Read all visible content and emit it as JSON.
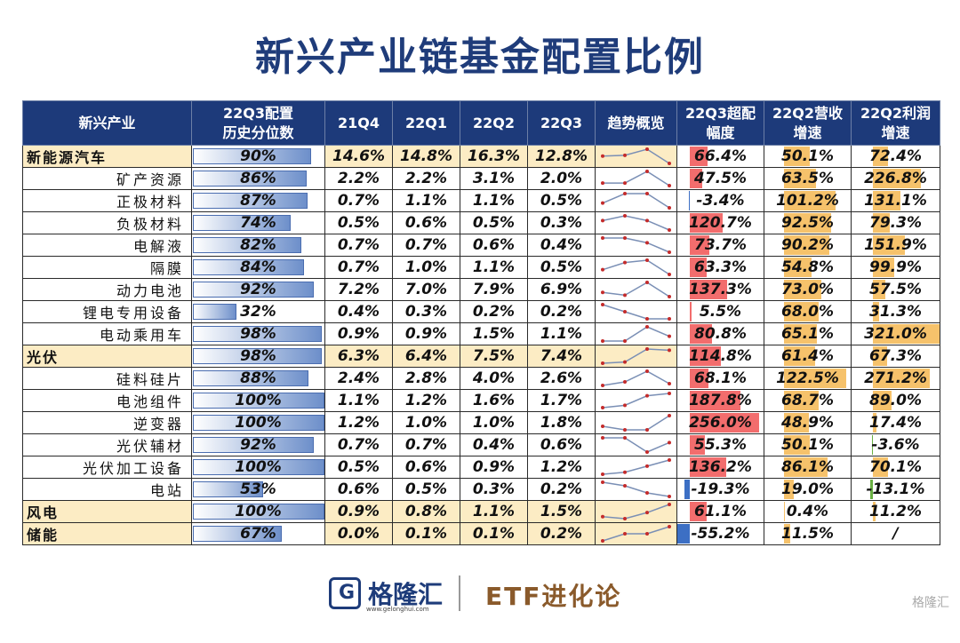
{
  "title": "新兴产业链基金配置比例",
  "headers": {
    "industry": "新兴产业",
    "pct_line1": "22Q3配置",
    "pct_line2": "历史分位数",
    "q1": "21Q4",
    "q2": "22Q1",
    "q3": "22Q2",
    "q4": "22Q3",
    "trend": "趋势概览",
    "over_line1": "22Q3超配",
    "over_line2": "幅度",
    "rev_line1": "22Q2营收",
    "rev_line2": "增速",
    "prof_line1": "22Q2利润",
    "prof_line2": "增速"
  },
  "rows": [
    {
      "name": "新能源汽车",
      "cat": true,
      "pct": "90%",
      "pct_v": 90,
      "q": [
        "14.6%",
        "14.8%",
        "16.3%",
        "12.8%"
      ],
      "qv": [
        14.6,
        14.8,
        16.3,
        12.8
      ],
      "over": "66.4%",
      "over_v": 66.4,
      "rev": "50.1%",
      "rev_v": 50.1,
      "prof": "72.4%",
      "prof_v": 72.4
    },
    {
      "name": "矿产资源",
      "cat": false,
      "pct": "86%",
      "pct_v": 86,
      "q": [
        "2.2%",
        "2.2%",
        "3.1%",
        "2.0%"
      ],
      "qv": [
        2.2,
        2.2,
        3.1,
        2.0
      ],
      "over": "47.5%",
      "over_v": 47.5,
      "rev": "63.5%",
      "rev_v": 63.5,
      "prof": "226.8%",
      "prof_v": 226.8
    },
    {
      "name": "正极材料",
      "cat": false,
      "pct": "87%",
      "pct_v": 87,
      "q": [
        "0.7%",
        "1.1%",
        "1.1%",
        "0.5%"
      ],
      "qv": [
        0.7,
        1.1,
        1.1,
        0.5
      ],
      "over": "-3.4%",
      "over_v": -3.4,
      "rev": "101.2%",
      "rev_v": 101.2,
      "prof": "131.1%",
      "prof_v": 131.1
    },
    {
      "name": "负极材料",
      "cat": false,
      "pct": "74%",
      "pct_v": 74,
      "q": [
        "0.5%",
        "0.6%",
        "0.5%",
        "0.3%"
      ],
      "qv": [
        0.5,
        0.6,
        0.5,
        0.3
      ],
      "over": "120.7%",
      "over_v": 120.7,
      "rev": "92.5%",
      "rev_v": 92.5,
      "prof": "79.3%",
      "prof_v": 79.3
    },
    {
      "name": "电解液",
      "cat": false,
      "pct": "82%",
      "pct_v": 82,
      "q": [
        "0.7%",
        "0.7%",
        "0.6%",
        "0.4%"
      ],
      "qv": [
        0.7,
        0.7,
        0.6,
        0.4
      ],
      "over": "73.7%",
      "over_v": 73.7,
      "rev": "90.2%",
      "rev_v": 90.2,
      "prof": "151.9%",
      "prof_v": 151.9
    },
    {
      "name": "隔膜",
      "cat": false,
      "pct": "84%",
      "pct_v": 84,
      "q": [
        "0.7%",
        "1.0%",
        "1.1%",
        "0.5%"
      ],
      "qv": [
        0.7,
        1.0,
        1.1,
        0.5
      ],
      "over": "63.3%",
      "over_v": 63.3,
      "rev": "54.8%",
      "rev_v": 54.8,
      "prof": "99.9%",
      "prof_v": 99.9
    },
    {
      "name": "动力电池",
      "cat": false,
      "pct": "92%",
      "pct_v": 92,
      "q": [
        "7.2%",
        "7.0%",
        "7.9%",
        "6.9%"
      ],
      "qv": [
        7.2,
        7.0,
        7.9,
        6.9
      ],
      "over": "137.3%",
      "over_v": 137.3,
      "rev": "73.0%",
      "rev_v": 73.0,
      "prof": "57.5%",
      "prof_v": 57.5
    },
    {
      "name": "锂电专用设备",
      "cat": false,
      "pct": "32%",
      "pct_v": 32,
      "q": [
        "0.4%",
        "0.3%",
        "0.2%",
        "0.2%"
      ],
      "qv": [
        0.4,
        0.3,
        0.2,
        0.2
      ],
      "over": "5.5%",
      "over_v": 5.5,
      "rev": "68.0%",
      "rev_v": 68.0,
      "prof": "31.3%",
      "prof_v": 31.3
    },
    {
      "name": "电动乘用车",
      "cat": false,
      "pct": "98%",
      "pct_v": 98,
      "q": [
        "0.9%",
        "0.9%",
        "1.5%",
        "1.1%"
      ],
      "qv": [
        0.9,
        0.9,
        1.5,
        1.1
      ],
      "over": "80.8%",
      "over_v": 80.8,
      "rev": "65.1%",
      "rev_v": 65.1,
      "prof": "321.0%",
      "prof_v": 321.0
    },
    {
      "name": "光伏",
      "cat": true,
      "pct": "98%",
      "pct_v": 98,
      "q": [
        "6.3%",
        "6.4%",
        "7.5%",
        "7.4%"
      ],
      "qv": [
        6.3,
        6.4,
        7.5,
        7.4
      ],
      "over": "114.8%",
      "over_v": 114.8,
      "rev": "61.4%",
      "rev_v": 61.4,
      "prof": "67.3%",
      "prof_v": 67.3
    },
    {
      "name": "硅料硅片",
      "cat": false,
      "pct": "88%",
      "pct_v": 88,
      "q": [
        "2.4%",
        "2.8%",
        "4.0%",
        "2.6%"
      ],
      "qv": [
        2.4,
        2.8,
        4.0,
        2.6
      ],
      "over": "68.1%",
      "over_v": 68.1,
      "rev": "122.5%",
      "rev_v": 122.5,
      "prof": "271.2%",
      "prof_v": 271.2
    },
    {
      "name": "电池组件",
      "cat": false,
      "pct": "100%",
      "pct_v": 100,
      "q": [
        "1.1%",
        "1.2%",
        "1.6%",
        "1.7%"
      ],
      "qv": [
        1.1,
        1.2,
        1.6,
        1.7
      ],
      "over": "187.8%",
      "over_v": 187.8,
      "rev": "68.7%",
      "rev_v": 68.7,
      "prof": "89.0%",
      "prof_v": 89.0
    },
    {
      "name": "逆变器",
      "cat": false,
      "pct": "100%",
      "pct_v": 100,
      "q": [
        "1.2%",
        "1.0%",
        "1.0%",
        "1.8%"
      ],
      "qv": [
        1.2,
        1.0,
        1.0,
        1.8
      ],
      "over": "256.0%",
      "over_v": 256.0,
      "rev": "48.9%",
      "rev_v": 48.9,
      "prof": "17.4%",
      "prof_v": 17.4
    },
    {
      "name": "光伏辅材",
      "cat": false,
      "pct": "92%",
      "pct_v": 92,
      "q": [
        "0.7%",
        "0.7%",
        "0.4%",
        "0.6%"
      ],
      "qv": [
        0.7,
        0.7,
        0.4,
        0.6
      ],
      "over": "55.3%",
      "over_v": 55.3,
      "rev": "50.1%",
      "rev_v": 50.1,
      "prof": "-3.6%",
      "prof_v": -3.6
    },
    {
      "name": "光伏加工设备",
      "cat": false,
      "pct": "100%",
      "pct_v": 100,
      "q": [
        "0.5%",
        "0.6%",
        "0.9%",
        "1.2%"
      ],
      "qv": [
        0.5,
        0.6,
        0.9,
        1.2
      ],
      "over": "136.2%",
      "over_v": 136.2,
      "rev": "86.1%",
      "rev_v": 86.1,
      "prof": "70.1%",
      "prof_v": 70.1
    },
    {
      "name": "电站",
      "cat": false,
      "pct": "53%",
      "pct_v": 53,
      "q": [
        "0.6%",
        "0.5%",
        "0.3%",
        "0.2%"
      ],
      "qv": [
        0.6,
        0.5,
        0.3,
        0.2
      ],
      "over": "-19.3%",
      "over_v": -19.3,
      "rev": "19.0%",
      "rev_v": 19.0,
      "prof": "-13.1%",
      "prof_v": -13.1
    },
    {
      "name": "风电",
      "cat": true,
      "pct": "100%",
      "pct_v": 100,
      "q": [
        "0.9%",
        "0.8%",
        "1.1%",
        "1.5%"
      ],
      "qv": [
        0.9,
        0.8,
        1.1,
        1.5
      ],
      "over": "61.1%",
      "over_v": 61.1,
      "rev": "0.4%",
      "rev_v": 0.4,
      "prof": "11.2%",
      "prof_v": 11.2
    },
    {
      "name": "储能",
      "cat": true,
      "pct": "67%",
      "pct_v": 67,
      "q": [
        "0.0%",
        "0.1%",
        "0.1%",
        "0.2%"
      ],
      "qv": [
        0.0,
        0.1,
        0.1,
        0.2
      ],
      "over": "-55.2%",
      "over_v": -55.2,
      "rev": "11.5%",
      "rev_v": 11.5,
      "prof": "/",
      "prof_v": null
    }
  ],
  "colors": {
    "header_bg": "#1d3a7a",
    "category_bg": "#fcecc4",
    "over_pos": "#f26d6d",
    "over_neg": "#3c6fc4",
    "growth_pos": "#f6c26b",
    "growth_neg": "#69b043",
    "trend_line": "#7a8fb5",
    "trend_dot": "#c42b2b"
  },
  "footer": {
    "logo_mark": "G",
    "logo_name": "格隆汇",
    "logo_url": "www.gelonghui.com",
    "brand": "ETF进化论",
    "watermark": "格隆汇"
  }
}
